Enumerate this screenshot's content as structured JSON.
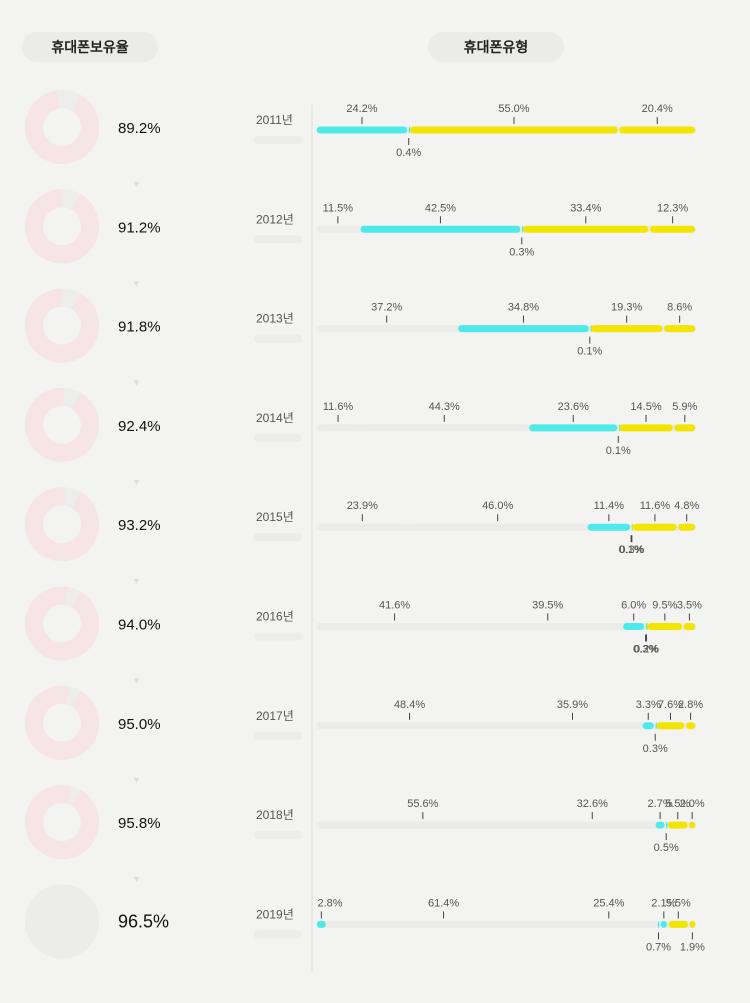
{
  "headers": {
    "ownership": "휴대폰보유율",
    "type": "휴대폰유형"
  },
  "colors": {
    "background": "#f3f3f2",
    "track": "#ebebea",
    "cyan": "#4eeaea",
    "yellow": "#f2e600",
    "donut_ring": "#f7e4e4",
    "donut_center": "#f3f3f2"
  },
  "chart_data": [
    {
      "type": "donut",
      "series_name": "휴대폰보유율",
      "categories": [
        "2011년",
        "2012년",
        "2013년",
        "2014년",
        "2015년",
        "2016년",
        "2017년",
        "2018년",
        "2019년"
      ],
      "values": [
        89.2,
        91.2,
        91.8,
        92.4,
        93.2,
        94.0,
        95.0,
        95.8,
        96.5
      ],
      "labels": [
        "89.2%",
        "91.2%",
        "91.8%",
        "92.4%",
        "93.2%",
        "94.0%",
        "95.0%",
        "95.8%",
        "96.5%"
      ]
    },
    {
      "type": "bar",
      "stacked": "100%",
      "series_name": "휴대폰유형",
      "rows": [
        {
          "year": "2011년",
          "segments": [
            {
              "value": 24.2,
              "label": "24.2%",
              "color": "cyan"
            },
            {
              "value": 0.4,
              "label": "0.4%",
              "color": "cyan"
            },
            {
              "value": 55.0,
              "label": "55.0%",
              "color": "yellow"
            },
            {
              "value": 20.4,
              "label": "20.4%",
              "color": "yellow"
            }
          ]
        },
        {
          "year": "2012년",
          "segments": [
            {
              "value": 11.5,
              "label": "11.5%",
              "color": "track"
            },
            {
              "value": 42.5,
              "label": "42.5%",
              "color": "cyan"
            },
            {
              "value": 0.3,
              "label": "0.3%",
              "color": "cyan"
            },
            {
              "value": 33.4,
              "label": "33.4%",
              "color": "yellow"
            },
            {
              "value": 12.3,
              "label": "12.3%",
              "color": "yellow"
            }
          ]
        },
        {
          "year": "2013년",
          "segments": [
            {
              "value": 37.2,
              "label": "37.2%",
              "color": "track"
            },
            {
              "value": 34.8,
              "label": "34.8%",
              "color": "cyan"
            },
            {
              "value": 0.1,
              "label": "0.1%",
              "color": "cyan"
            },
            {
              "value": 19.3,
              "label": "19.3%",
              "color": "yellow"
            },
            {
              "value": 8.6,
              "label": "8.6%",
              "color": "yellow"
            }
          ]
        },
        {
          "year": "2014년",
          "segments": [
            {
              "value": 11.6,
              "label": "11.6%",
              "color": "track"
            },
            {
              "value": 44.3,
              "label": "44.3%",
              "color": "track"
            },
            {
              "value": 23.6,
              "label": "23.6%",
              "color": "cyan"
            },
            {
              "value": 0.1,
              "label": "0.1%",
              "color": "cyan"
            },
            {
              "value": 14.5,
              "label": "14.5%",
              "color": "yellow"
            },
            {
              "value": 5.9,
              "label": "5.9%",
              "color": "yellow"
            }
          ]
        },
        {
          "year": "2015년",
          "segments": [
            {
              "value": 23.9,
              "label": "23.9%",
              "color": "track"
            },
            {
              "value": 46.0,
              "label": "46.0%",
              "color": "track"
            },
            {
              "value": 11.4,
              "label": "11.4%",
              "color": "cyan"
            },
            {
              "value": 0.1,
              "label": "0.1%",
              "color": "cyan"
            },
            {
              "value": 0.3,
              "label": "0.3%",
              "color": "yellow"
            },
            {
              "value": 11.6,
              "label": "11.6%",
              "color": "yellow"
            },
            {
              "value": 4.8,
              "label": "4.8%",
              "color": "yellow"
            }
          ]
        },
        {
          "year": "2016년",
          "segments": [
            {
              "value": 41.6,
              "label": "41.6%",
              "color": "track"
            },
            {
              "value": 39.5,
              "label": "39.5%",
              "color": "track"
            },
            {
              "value": 6.0,
              "label": "6.0%",
              "color": "cyan"
            },
            {
              "value": 0.3,
              "label": "0.3%",
              "color": "cyan"
            },
            {
              "value": 0.2,
              "label": "0.2%",
              "color": "yellow"
            },
            {
              "value": 9.5,
              "label": "9.5%",
              "color": "yellow"
            },
            {
              "value": 3.5,
              "label": "3.5%",
              "color": "yellow"
            }
          ]
        },
        {
          "year": "2017년",
          "segments": [
            {
              "value": 48.4,
              "label": "48.4%",
              "color": "track"
            },
            {
              "value": 35.9,
              "label": "35.9%",
              "color": "track"
            },
            {
              "value": 3.3,
              "label": "3.3%",
              "color": "cyan"
            },
            {
              "value": 0.3,
              "label": "0.3%",
              "color": "cyan"
            },
            {
              "value": 7.6,
              "label": "7.6%",
              "color": "yellow"
            },
            {
              "value": 2.8,
              "label": "2.8%",
              "color": "yellow"
            }
          ]
        },
        {
          "year": "2018년",
          "segments": [
            {
              "value": 55.6,
              "label": "55.6%",
              "color": "track"
            },
            {
              "value": 32.6,
              "label": "32.6%",
              "color": "track"
            },
            {
              "value": 2.7,
              "label": "2.7%",
              "color": "cyan"
            },
            {
              "value": 0.5,
              "label": "0.5%",
              "color": "cyan"
            },
            {
              "value": 5.5,
              "label": "5.5%",
              "color": "yellow"
            },
            {
              "value": 2.0,
              "label": "2.0%",
              "color": "yellow"
            }
          ]
        },
        {
          "year": "2019년",
          "segments": [
            {
              "value": 2.8,
              "label": "2.8%",
              "color": "cyan"
            },
            {
              "value": 61.4,
              "label": "61.4%",
              "color": "track"
            },
            {
              "value": 25.4,
              "label": "25.4%",
              "color": "track"
            },
            {
              "value": 0.7,
              "label": "0.7%",
              "color": "cyan"
            },
            {
              "value": 2.1,
              "label": "2.1%",
              "color": "cyan"
            },
            {
              "value": 5.5,
              "label": "5.5%",
              "color": "yellow"
            },
            {
              "value": 1.9,
              "label": "1.9%",
              "color": "yellow"
            }
          ]
        }
      ]
    }
  ]
}
